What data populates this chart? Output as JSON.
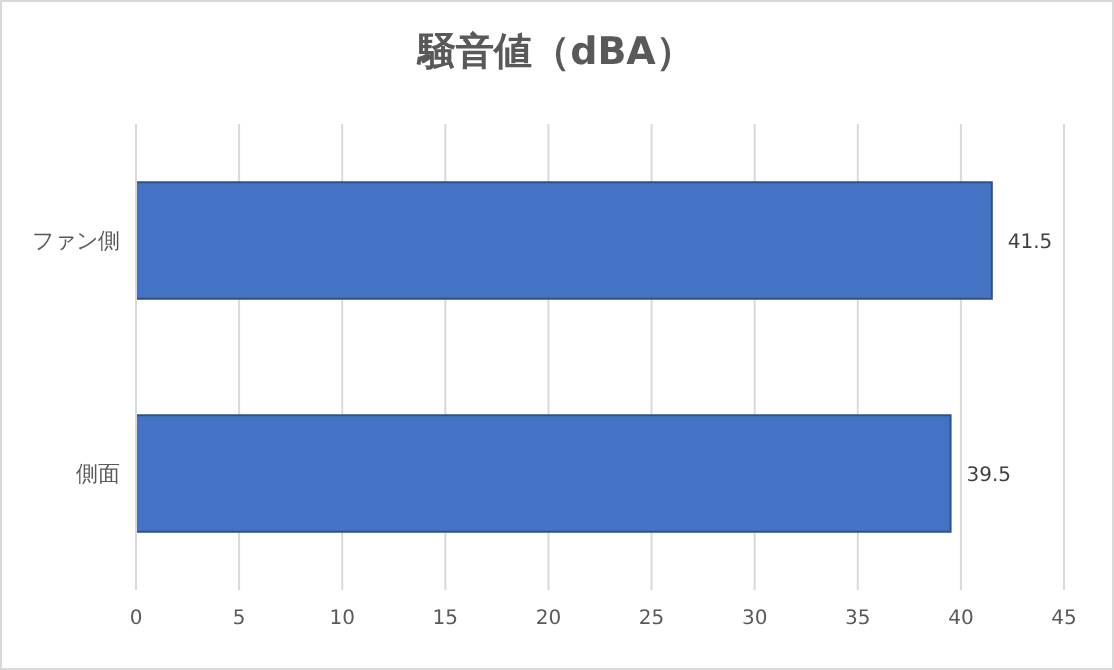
{
  "chart_data": {
    "type": "bar",
    "title": "騒音値（dBA）",
    "orientation": "horizontal",
    "categories": [
      "ファン側",
      "側面"
    ],
    "values": [
      41.5,
      39.5
    ],
    "color": "#4472c4",
    "xlim": [
      0,
      45
    ],
    "xticks": [
      0,
      5,
      10,
      15,
      20,
      25,
      30,
      35,
      40,
      45
    ],
    "grid": "x",
    "data_labels": true
  }
}
